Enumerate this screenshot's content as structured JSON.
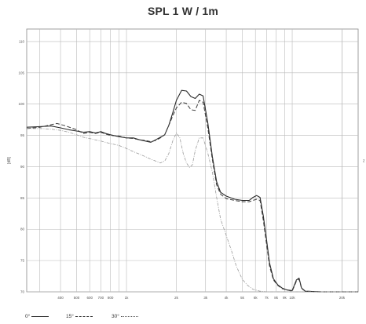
{
  "chart_data": {
    "type": "line",
    "title": "SPL 1 W / 1m",
    "ylabel": "[dB]",
    "right_label": "z",
    "xscale": "log",
    "xlim": [
      250,
      25000
    ],
    "ylim": [
      70,
      112
    ],
    "yticks": [
      70,
      75,
      80,
      85,
      90,
      95,
      100,
      105,
      110
    ],
    "ytick_labels": [
      "70",
      "75",
      "80",
      "85",
      "90",
      "95",
      "100",
      "105",
      "110"
    ],
    "xticks": [
      400,
      500,
      600,
      700,
      800,
      1000,
      2000,
      3000,
      4000,
      5000,
      6000,
      7000,
      8000,
      9000,
      10000,
      20000
    ],
    "xtick_labels": [
      "400",
      "500",
      "600",
      "700",
      "800",
      "1k",
      "2k",
      "3k",
      "4k",
      "5k",
      "6k",
      "7k",
      "8k",
      "9k",
      "10k",
      "20k"
    ],
    "grid": true,
    "legend": [
      {
        "label": "0°",
        "style": "solid"
      },
      {
        "label": "15°",
        "style": "dashed"
      },
      {
        "label": "30°",
        "style": "dashdot"
      }
    ],
    "series": [
      {
        "name": "0°",
        "style": "solid",
        "points": [
          [
            250,
            96.3
          ],
          [
            300,
            96.4
          ],
          [
            350,
            96.5
          ],
          [
            400,
            96.2
          ],
          [
            450,
            95.9
          ],
          [
            500,
            95.7
          ],
          [
            550,
            95.5
          ],
          [
            600,
            95.6
          ],
          [
            650,
            95.4
          ],
          [
            700,
            95.6
          ],
          [
            750,
            95.3
          ],
          [
            800,
            95.1
          ],
          [
            900,
            94.8
          ],
          [
            1000,
            94.6
          ],
          [
            1100,
            94.6
          ],
          [
            1200,
            94.3
          ],
          [
            1300,
            94.1
          ],
          [
            1400,
            93.9
          ],
          [
            1500,
            94.3
          ],
          [
            1600,
            94.7
          ],
          [
            1700,
            95.1
          ],
          [
            1800,
            96.6
          ],
          [
            1900,
            98.6
          ],
          [
            2000,
            100.6
          ],
          [
            2150,
            102.2
          ],
          [
            2300,
            102.1
          ],
          [
            2450,
            101.2
          ],
          [
            2600,
            100.9
          ],
          [
            2750,
            101.6
          ],
          [
            2900,
            101.3
          ],
          [
            3100,
            96.9
          ],
          [
            3300,
            91.6
          ],
          [
            3500,
            87.6
          ],
          [
            3700,
            85.9
          ],
          [
            4000,
            85.3
          ],
          [
            4500,
            84.8
          ],
          [
            5000,
            84.6
          ],
          [
            5500,
            84.6
          ],
          [
            5800,
            85.1
          ],
          [
            6100,
            85.4
          ],
          [
            6400,
            85.1
          ],
          [
            6700,
            82.1
          ],
          [
            7000,
            78.3
          ],
          [
            7300,
            74.6
          ],
          [
            7700,
            72.1
          ],
          [
            8200,
            71.1
          ],
          [
            8700,
            70.6
          ],
          [
            9300,
            70.3
          ],
          [
            10000,
            70.2
          ],
          [
            10600,
            71.9
          ],
          [
            11000,
            72.2
          ],
          [
            11400,
            70.6
          ],
          [
            12000,
            70.1
          ],
          [
            15000,
            70.0
          ],
          [
            20000,
            70.0
          ],
          [
            25000,
            70.0
          ]
        ]
      },
      {
        "name": "15°",
        "style": "dashed",
        "points": [
          [
            250,
            96.1
          ],
          [
            300,
            96.3
          ],
          [
            350,
            96.7
          ],
          [
            380,
            96.9
          ],
          [
            420,
            96.6
          ],
          [
            500,
            95.9
          ],
          [
            550,
            95.3
          ],
          [
            600,
            95.5
          ],
          [
            650,
            95.3
          ],
          [
            700,
            95.5
          ],
          [
            750,
            95.2
          ],
          [
            800,
            95.0
          ],
          [
            900,
            94.9
          ],
          [
            1000,
            94.6
          ],
          [
            1100,
            94.5
          ],
          [
            1200,
            94.3
          ],
          [
            1300,
            94.2
          ],
          [
            1400,
            94.0
          ],
          [
            1500,
            94.2
          ],
          [
            1600,
            94.6
          ],
          [
            1700,
            95.1
          ],
          [
            1800,
            96.6
          ],
          [
            1900,
            98.1
          ],
          [
            2000,
            99.4
          ],
          [
            2150,
            100.3
          ],
          [
            2300,
            100.1
          ],
          [
            2450,
            99.1
          ],
          [
            2600,
            99.0
          ],
          [
            2750,
            100.6
          ],
          [
            2900,
            100.3
          ],
          [
            3100,
            96.1
          ],
          [
            3300,
            91.1
          ],
          [
            3500,
            87.1
          ],
          [
            3700,
            85.6
          ],
          [
            4000,
            84.9
          ],
          [
            4500,
            84.6
          ],
          [
            5000,
            84.4
          ],
          [
            5500,
            84.4
          ],
          [
            5800,
            84.6
          ],
          [
            6100,
            84.8
          ],
          [
            6400,
            84.6
          ],
          [
            6700,
            81.4
          ],
          [
            7000,
            77.6
          ],
          [
            7300,
            74.1
          ],
          [
            7700,
            71.9
          ],
          [
            8200,
            71.0
          ],
          [
            8700,
            70.5
          ],
          [
            9300,
            70.3
          ],
          [
            10000,
            70.1
          ],
          [
            10600,
            71.7
          ],
          [
            11000,
            72.0
          ],
          [
            11400,
            70.5
          ],
          [
            12000,
            70.1
          ],
          [
            15000,
            70.0
          ],
          [
            20000,
            70.0
          ],
          [
            25000,
            70.0
          ]
        ]
      },
      {
        "name": "30°",
        "style": "dashdot",
        "points": [
          [
            250,
            96.1
          ],
          [
            300,
            96.1
          ],
          [
            350,
            96.0
          ],
          [
            400,
            95.8
          ],
          [
            450,
            95.5
          ],
          [
            500,
            95.1
          ],
          [
            550,
            94.7
          ],
          [
            600,
            94.5
          ],
          [
            700,
            94.1
          ],
          [
            800,
            93.7
          ],
          [
            900,
            93.4
          ],
          [
            1000,
            92.9
          ],
          [
            1100,
            92.4
          ],
          [
            1200,
            92.0
          ],
          [
            1300,
            91.6
          ],
          [
            1400,
            91.2
          ],
          [
            1500,
            90.9
          ],
          [
            1600,
            90.6
          ],
          [
            1700,
            90.9
          ],
          [
            1800,
            92.1
          ],
          [
            1900,
            94.1
          ],
          [
            2000,
            95.4
          ],
          [
            2100,
            94.6
          ],
          [
            2200,
            92.1
          ],
          [
            2300,
            90.6
          ],
          [
            2400,
            89.9
          ],
          [
            2500,
            90.3
          ],
          [
            2600,
            92.6
          ],
          [
            2750,
            94.6
          ],
          [
            2900,
            94.6
          ],
          [
            3100,
            92.1
          ],
          [
            3300,
            89.1
          ],
          [
            3500,
            85.1
          ],
          [
            3700,
            81.6
          ],
          [
            4000,
            79.0
          ],
          [
            4300,
            76.6
          ],
          [
            4600,
            74.1
          ],
          [
            5000,
            72.0
          ],
          [
            5400,
            71.0
          ],
          [
            5800,
            70.4
          ],
          [
            6400,
            70.1
          ],
          [
            7000,
            70.0
          ],
          [
            8000,
            70.0
          ],
          [
            10000,
            70.0
          ],
          [
            15000,
            70.0
          ],
          [
            20000,
            70.0
          ],
          [
            25000,
            70.0
          ]
        ]
      }
    ]
  }
}
